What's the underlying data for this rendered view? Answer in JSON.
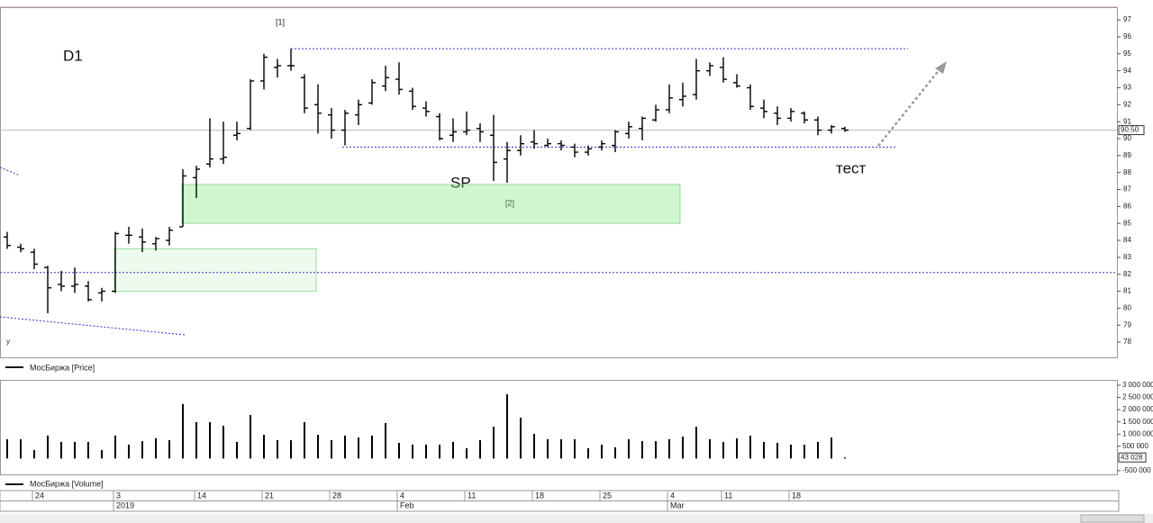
{
  "chart_data": {
    "type": "ohlc",
    "title": "D1",
    "price_name": "МосБиржа [Price]",
    "volume_name": "МосБиржа [Volume]",
    "annotations": [
      "[1]",
      "[2]",
      "SP",
      "тест",
      "y"
    ],
    "categories": [
      null,
      null,
      "24",
      null,
      null,
      null,
      null,
      null,
      "3",
      null,
      null,
      null,
      null,
      null,
      "14",
      null,
      null,
      null,
      null,
      "21",
      null,
      null,
      null,
      null,
      "28",
      null,
      null,
      null,
      null,
      "4",
      null,
      null,
      null,
      null,
      "11",
      null,
      null,
      null,
      null,
      "18",
      null,
      null,
      null,
      null,
      "25",
      null,
      null,
      null,
      null,
      "4",
      null,
      null,
      null,
      "11",
      null,
      null,
      null,
      null,
      "18",
      null,
      null,
      null,
      null
    ],
    "months": [
      null,
      null,
      null,
      null,
      null,
      null,
      null,
      null,
      "2019",
      null,
      null,
      null,
      null,
      null,
      null,
      null,
      null,
      null,
      null,
      null,
      null,
      null,
      null,
      null,
      null,
      null,
      null,
      null,
      null,
      "Feb",
      null,
      null,
      null,
      null,
      null,
      null,
      null,
      null,
      null,
      null,
      null,
      null,
      null,
      null,
      null,
      null,
      null,
      null,
      null,
      "Mar",
      null,
      null,
      null,
      null,
      null,
      null,
      null,
      null,
      null,
      null,
      null,
      null,
      null
    ],
    "open": [
      84.2,
      83.6,
      83.3,
      82.4,
      81.4,
      81.3,
      81.3,
      80.9,
      81.0,
      84.3,
      84.2,
      83.8,
      84.0,
      84.8,
      87.7,
      88.5,
      88.8,
      90.2,
      90.6,
      93.4,
      94.2,
      94.3,
      93.6,
      92.0,
      91.4,
      90.5,
      91.4,
      92.1,
      93.1,
      93.5,
      92.8,
      91.8,
      91.3,
      90.2,
      90.4,
      90.6,
      90.2,
      88.8,
      89.3,
      89.8,
      89.6,
      89.7,
      89.5,
      89.2,
      89.5,
      89.6,
      90.3,
      90.6,
      91.1,
      91.7,
      92.3,
      92.6,
      94.0,
      94.2,
      93.3,
      93.0,
      91.8,
      91.5,
      91.2,
      91.5,
      91.1,
      90.5,
      90.6
    ],
    "high": [
      84.5,
      83.8,
      83.5,
      82.5,
      82.2,
      82.4,
      81.6,
      81.2,
      84.5,
      84.8,
      84.7,
      84.2,
      84.8,
      88.2,
      88.4,
      91.2,
      91.0,
      91.0,
      93.5,
      95.0,
      94.7,
      95.3,
      93.8,
      93.2,
      91.8,
      91.7,
      92.3,
      93.5,
      94.3,
      94.5,
      93.0,
      92.2,
      91.5,
      91.2,
      91.6,
      90.9,
      91.4,
      89.8,
      90.2,
      90.5,
      90.0,
      89.9,
      89.7,
      89.6,
      89.9,
      90.5,
      91.0,
      91.3,
      92.0,
      93.2,
      93.3,
      94.7,
      94.5,
      94.8,
      93.8,
      93.2,
      92.3,
      91.9,
      91.8,
      91.6,
      91.3,
      90.8,
      90.7
    ],
    "low": [
      83.5,
      83.3,
      82.3,
      79.7,
      81.0,
      80.9,
      80.4,
      80.4,
      80.9,
      83.8,
      83.3,
      83.4,
      83.7,
      84.8,
      86.5,
      88.3,
      88.5,
      89.9,
      90.5,
      92.9,
      93.6,
      94.0,
      91.5,
      90.3,
      90.0,
      89.6,
      90.8,
      92.0,
      92.8,
      92.6,
      91.7,
      91.3,
      89.9,
      89.8,
      90.2,
      89.8,
      87.5,
      87.4,
      89.0,
      89.4,
      89.5,
      89.3,
      88.9,
      89.0,
      89.3,
      89.2,
      90.0,
      89.9,
      91.0,
      91.5,
      91.9,
      92.3,
      93.7,
      93.3,
      93.0,
      91.7,
      91.2,
      90.8,
      91.0,
      90.9,
      90.2,
      90.3,
      90.4
    ],
    "close": [
      83.7,
      83.5,
      82.6,
      81.2,
      81.3,
      81.4,
      80.5,
      81.0,
      84.4,
      84.3,
      83.9,
      84.1,
      84.6,
      87.8,
      88.2,
      88.8,
      88.9,
      90.3,
      93.4,
      94.8,
      94.3,
      94.3,
      91.8,
      91.5,
      90.5,
      91.5,
      92.0,
      93.3,
      93.6,
      92.9,
      91.9,
      91.6,
      90.0,
      90.4,
      90.5,
      90.4,
      88.6,
      89.3,
      89.7,
      89.7,
      89.7,
      89.6,
      89.2,
      89.4,
      89.7,
      90.4,
      90.7,
      91.2,
      91.7,
      92.4,
      92.5,
      94.0,
      94.3,
      93.5,
      93.1,
      91.9,
      91.6,
      91.2,
      91.6,
      91.1,
      90.5,
      90.7,
      90.5
    ],
    "volume": [
      790000,
      790000,
      350000,
      940000,
      680000,
      680000,
      680000,
      350000,
      940000,
      570000,
      710000,
      830000,
      750000,
      2230000,
      1490000,
      1490000,
      1340000,
      680000,
      1780000,
      970000,
      750000,
      750000,
      1490000,
      970000,
      750000,
      940000,
      860000,
      940000,
      1450000,
      640000,
      570000,
      570000,
      570000,
      680000,
      420000,
      750000,
      1300000,
      2630000,
      1670000,
      1010000,
      790000,
      790000,
      790000,
      420000,
      570000,
      460000,
      790000,
      710000,
      710000,
      790000,
      900000,
      1300000,
      790000,
      680000,
      830000,
      940000,
      680000,
      640000,
      570000,
      570000,
      680000,
      860000,
      43028
    ],
    "last_volume_label": "43 028",
    "last_price": 90.5,
    "last_price_label": "90.50",
    "levels": [
      95.3,
      89.5,
      82.1
    ],
    "zones": [
      {
        "low": 85.0,
        "high": 87.3
      },
      {
        "low": 81.0,
        "high": 83.5
      }
    ],
    "ylim": [
      77.1,
      97.75
    ],
    "yticks": [
      78,
      79,
      80,
      81,
      82,
      83,
      84,
      85,
      86,
      87,
      88,
      89,
      90,
      91,
      92,
      93,
      94,
      95,
      96,
      97
    ],
    "y2lim": [
      -650000,
      3220000
    ],
    "y2ticks": [
      {
        "value": 3000000,
        "label": "3 000 000"
      },
      {
        "value": 2500000,
        "label": "2 500 000"
      },
      {
        "value": 2000000,
        "label": "2 000 000"
      },
      {
        "value": 1500000,
        "label": "1 500 000"
      },
      {
        "value": 1000000,
        "label": "1 000 000"
      },
      {
        "value": 500000,
        "label": "500 000"
      },
      {
        "value": -500000,
        "label": "-500 000"
      }
    ]
  }
}
